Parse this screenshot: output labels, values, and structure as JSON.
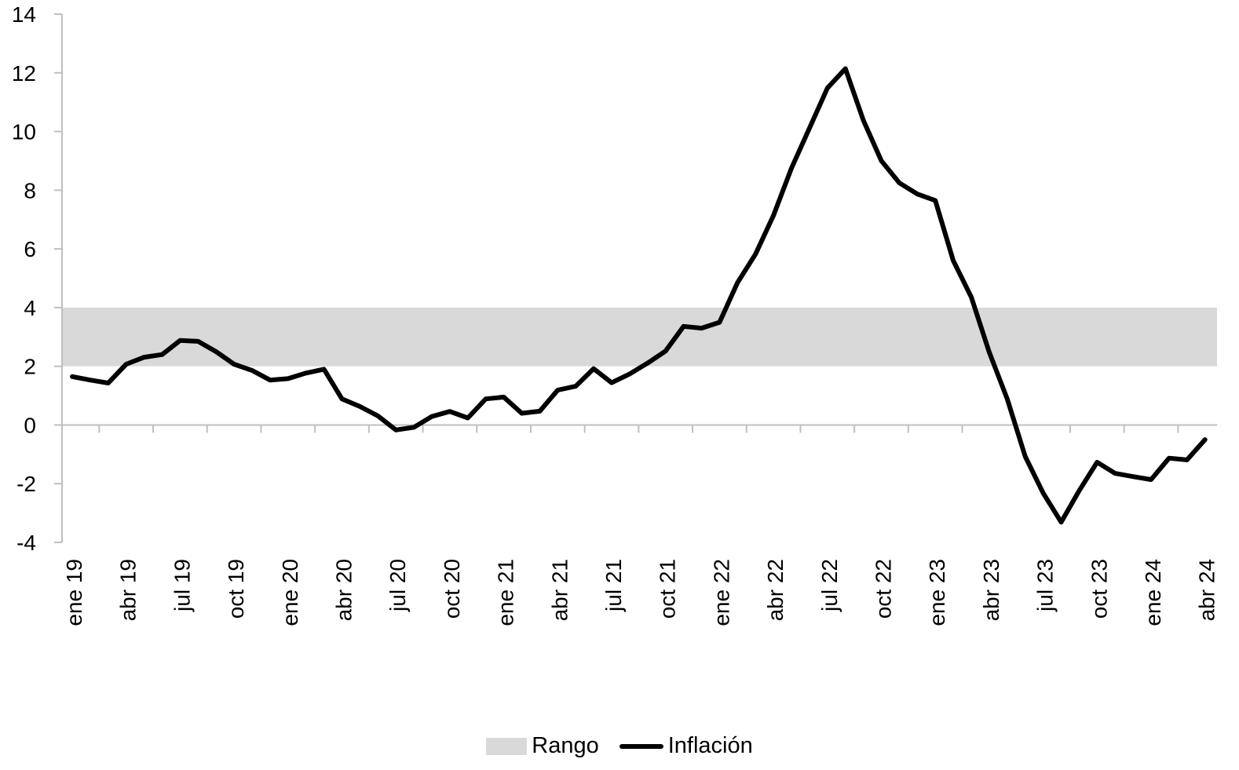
{
  "chart_data": {
    "type": "line",
    "title": "",
    "xlabel": "",
    "ylabel": "",
    "ylim": [
      -4,
      14
    ],
    "yticks": [
      -4,
      -2,
      0,
      2,
      4,
      6,
      8,
      10,
      12,
      14
    ],
    "x_tick_labels": [
      "ene 19",
      "abr 19",
      "jul 19",
      "oct 19",
      "ene 20",
      "abr 20",
      "jul 20",
      "oct 20",
      "ene 21",
      "abr 21",
      "jul 21",
      "oct 21",
      "ene 22",
      "abr 22",
      "jul 22",
      "oct 22",
      "ene 23",
      "abr 23",
      "jul 23",
      "oct 23",
      "ene 24",
      "abr 24"
    ],
    "band": {
      "name": "Rango",
      "lower": 2,
      "upper": 4,
      "color": "#d9d9d9"
    },
    "series": [
      {
        "name": "Inflación",
        "color": "#000000",
        "start": "ene 19",
        "values": [
          1.65,
          1.53,
          1.43,
          2.07,
          2.31,
          2.4,
          2.88,
          2.85,
          2.5,
          2.07,
          1.86,
          1.53,
          1.58,
          1.77,
          1.9,
          0.89,
          0.63,
          0.31,
          -0.17,
          -0.08,
          0.29,
          0.46,
          0.24,
          0.89,
          0.95,
          0.4,
          0.47,
          1.19,
          1.32,
          1.92,
          1.44,
          1.74,
          2.11,
          2.52,
          3.36,
          3.3,
          3.5,
          4.85,
          5.82,
          7.14,
          8.75,
          10.11,
          11.48,
          12.14,
          10.38,
          9.0,
          8.25,
          7.87,
          7.65,
          5.6,
          4.36,
          2.48,
          0.89,
          -1.07,
          -2.32,
          -3.31,
          -2.24,
          -1.27,
          -1.65,
          -1.76,
          -1.86,
          -1.13,
          -1.19,
          -0.5
        ]
      }
    ],
    "legend": {
      "position": "bottom",
      "items": [
        "Rango",
        "Inflación"
      ]
    },
    "grid": false
  }
}
